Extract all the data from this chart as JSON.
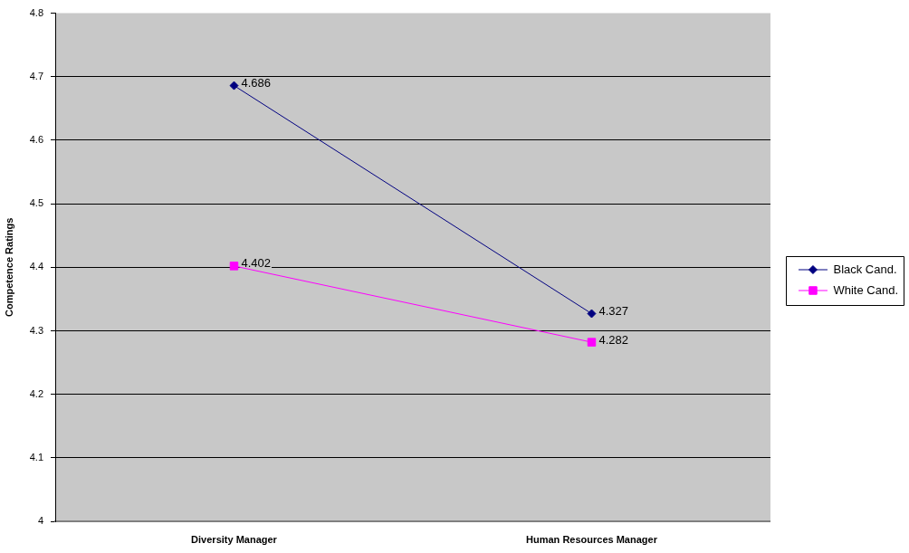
{
  "chart_data": {
    "type": "line",
    "ylabel": "Competence Ratings",
    "categories": [
      "Diversity Manager",
      "Human Resources Manager"
    ],
    "series": [
      {
        "name": "Black Cand.",
        "color": "#000080",
        "marker": "diamond",
        "values": [
          4.686,
          4.327
        ]
      },
      {
        "name": "White Cand.",
        "color": "#ff00ff",
        "marker": "square",
        "values": [
          4.402,
          4.282
        ]
      }
    ],
    "ylim": [
      4,
      4.8
    ],
    "yticks": [
      4,
      4.1,
      4.2,
      4.3,
      4.4,
      4.5,
      4.6,
      4.7,
      4.8
    ],
    "grid": "y",
    "legend": "right",
    "data_labels": true,
    "line_style": "solid"
  }
}
